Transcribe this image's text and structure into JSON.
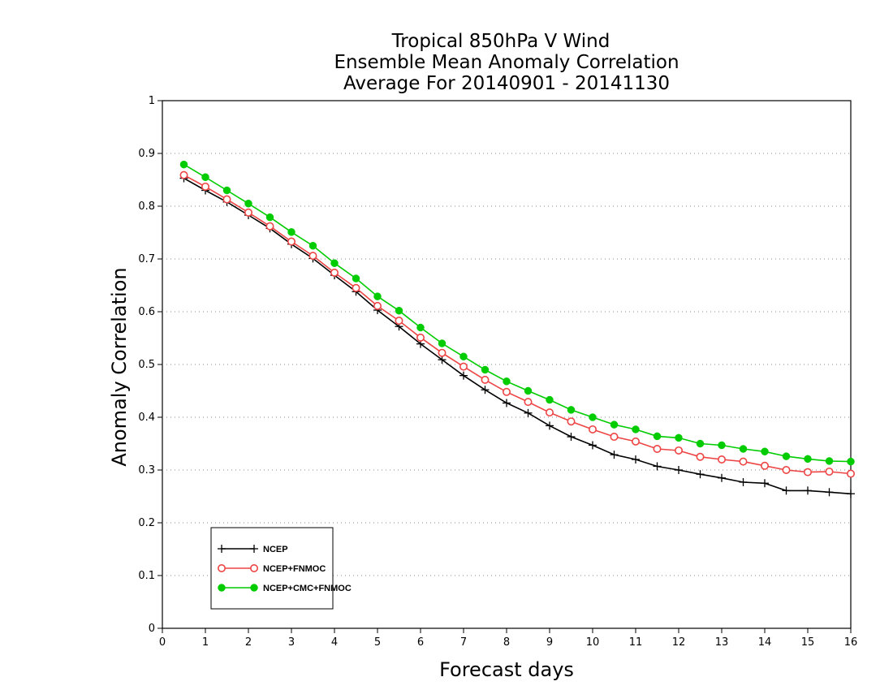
{
  "chart_data": {
    "type": "line",
    "title": [
      "Tropical 850hPa V Wind",
      "Ensemble Mean Anomaly Correlation",
      "Average For 20140901 - 20141130"
    ],
    "xlabel": "Forecast days",
    "ylabel": "Anomaly Correlation",
    "xlim": [
      0,
      16
    ],
    "ylim": [
      0,
      1
    ],
    "xticks": [
      0,
      1,
      2,
      3,
      4,
      5,
      6,
      7,
      8,
      9,
      10,
      11,
      12,
      13,
      14,
      15,
      16
    ],
    "xtick_labels": [
      "0",
      "1",
      "2",
      "3",
      "4",
      "5",
      "6",
      "7",
      "8",
      "9",
      "10",
      "11",
      "12",
      "13",
      "14",
      "15",
      "16"
    ],
    "yticks": [
      0,
      0.1,
      0.2,
      0.3,
      0.4,
      0.5,
      0.6,
      0.7,
      0.8,
      0.9,
      1
    ],
    "ytick_labels": [
      "0",
      "0.1",
      "0.2",
      "0.3",
      "0.4",
      "0.5",
      "0.6",
      "0.7",
      "0.8",
      "0.9",
      "1"
    ],
    "grid": "horizontal dotted",
    "legend_position": "bottom-left",
    "x": [
      0.5,
      1,
      1.5,
      2,
      2.5,
      3,
      3.5,
      4,
      4.5,
      5,
      5.5,
      6,
      6.5,
      7,
      7.5,
      8,
      8.5,
      9,
      9.5,
      10,
      10.5,
      11,
      11.5,
      12,
      12.5,
      13,
      13.5,
      14,
      14.5,
      15,
      15.5,
      16
    ],
    "series": [
      {
        "name": "NCEP",
        "color": "#000000",
        "marker": "plus",
        "values": [
          0.853,
          0.83,
          0.808,
          0.783,
          0.758,
          0.728,
          0.701,
          0.669,
          0.638,
          0.603,
          0.572,
          0.539,
          0.509,
          0.479,
          0.452,
          0.427,
          0.408,
          0.384,
          0.363,
          0.347,
          0.329,
          0.32,
          0.307,
          0.3,
          0.292,
          0.285,
          0.277,
          0.275,
          0.261,
          0.261,
          0.258,
          0.255
        ]
      },
      {
        "name": "NCEP+FNMOC",
        "color": "#ee4444",
        "marker": "open-circle",
        "values": [
          0.859,
          0.837,
          0.813,
          0.788,
          0.762,
          0.733,
          0.706,
          0.674,
          0.645,
          0.611,
          0.583,
          0.551,
          0.522,
          0.496,
          0.471,
          0.448,
          0.429,
          0.409,
          0.392,
          0.377,
          0.363,
          0.354,
          0.34,
          0.337,
          0.325,
          0.32,
          0.316,
          0.308,
          0.3,
          0.296,
          0.297,
          0.293
        ]
      },
      {
        "name": "NCEP+CMC+FNMOC",
        "color": "#00cc00",
        "marker": "filled-circle",
        "values": [
          0.879,
          0.855,
          0.83,
          0.805,
          0.779,
          0.751,
          0.725,
          0.692,
          0.663,
          0.629,
          0.602,
          0.57,
          0.54,
          0.515,
          0.49,
          0.468,
          0.45,
          0.433,
          0.414,
          0.4,
          0.386,
          0.377,
          0.364,
          0.361,
          0.35,
          0.347,
          0.34,
          0.335,
          0.326,
          0.321,
          0.317,
          0.316
        ]
      }
    ]
  }
}
